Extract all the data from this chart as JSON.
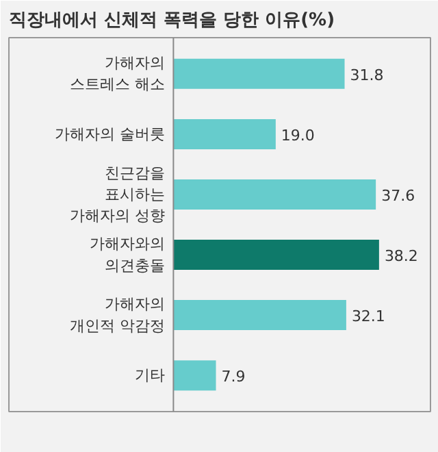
{
  "chart_data": {
    "type": "bar",
    "orientation": "horizontal",
    "title": "직장내에서 신체적 폭력을 당한 이유(%)",
    "categories": [
      "가해자의\n스트레스 해소",
      "가해자의 술버릇",
      "친근감을\n표시하는\n가해자의 성향",
      "가해자와의\n의견충돌",
      "가해자의\n개인적 악감정",
      "기타"
    ],
    "values": [
      31.8,
      19.0,
      37.6,
      38.2,
      32.1,
      7.9
    ],
    "value_labels": [
      "31.8",
      "19.0",
      "37.6",
      "38.2",
      "32.1",
      "7.9"
    ],
    "colors": [
      "#66cccc",
      "#66cccc",
      "#66cccc",
      "#0e7a6a",
      "#66cccc",
      "#66cccc"
    ],
    "grid": false
  }
}
